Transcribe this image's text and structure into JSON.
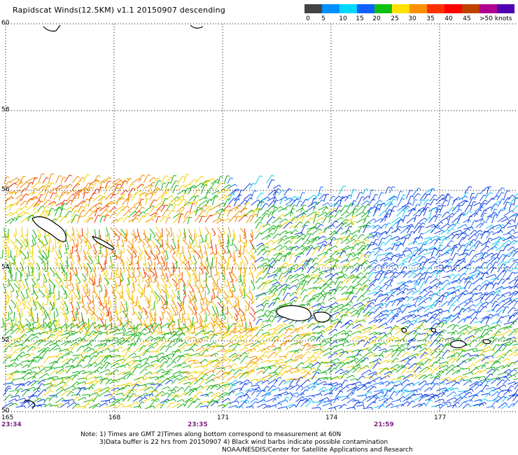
{
  "title": "Rapidscat Winds(12.5KM) v1.1 20150907 descending",
  "legend": {
    "colors": [
      "#444444",
      "#0090ff",
      "#00d8ff",
      "#1060ff",
      "#10c010",
      "#ffe000",
      "#ff9000",
      "#ff3000",
      "#ff0000",
      "#c04000",
      "#b00090",
      "#5000b0"
    ],
    "labels": [
      "0",
      "5",
      "10",
      "15",
      "20",
      "25",
      "30",
      "35",
      "40",
      "45",
      ">50 knots"
    ]
  },
  "lat_labels": [
    "60",
    "58",
    "56",
    "54",
    "52",
    "50"
  ],
  "lon_labels": [
    "165",
    "168",
    "171",
    "174",
    "177"
  ],
  "time_labels": [
    "23:34",
    "23:35",
    "21:59"
  ],
  "notes": [
    "Note: 1) Times are GMT 2)Times along bottom correspond to measurement at 60N",
    "3)Data buffer is 22 hrs from 20150907 4) Black wind barbs indicate possible contamination"
  ],
  "credit": "NOAA/NESDIS/Center for Satellite Applications and Research"
}
